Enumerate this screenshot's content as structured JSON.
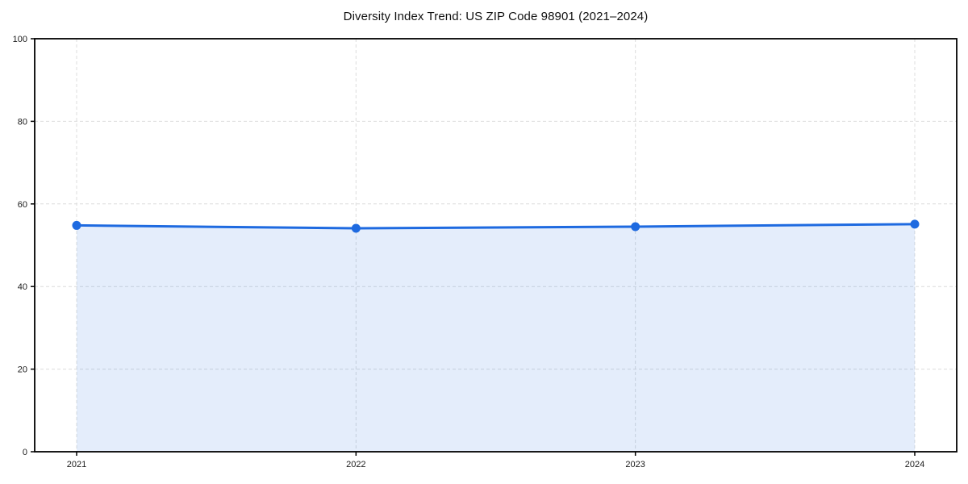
{
  "chart_data": {
    "type": "area",
    "title": "Diversity Index Trend: US ZIP Code 98901 (2021–2024)",
    "series_name": "Diversity Index",
    "categories": [
      "2021",
      "2022",
      "2023",
      "2024"
    ],
    "values": [
      54.8,
      54.1,
      54.5,
      55.1
    ],
    "xlabel": "",
    "ylabel": "",
    "ylim": [
      0,
      100
    ],
    "y_ticks": [
      0,
      20,
      40,
      60,
      80,
      100
    ],
    "grid": true,
    "grid_style": "dashed",
    "legend": false,
    "colors": {
      "line": "#1e6ae0",
      "marker": "#1e6ae0",
      "fill": "rgba(30,106,224,0.12)",
      "grid": "#dcdcdc",
      "spine": "#000000",
      "tick_label": "#1a1a1a",
      "background": "#ffffff",
      "title": "#111111"
    }
  }
}
